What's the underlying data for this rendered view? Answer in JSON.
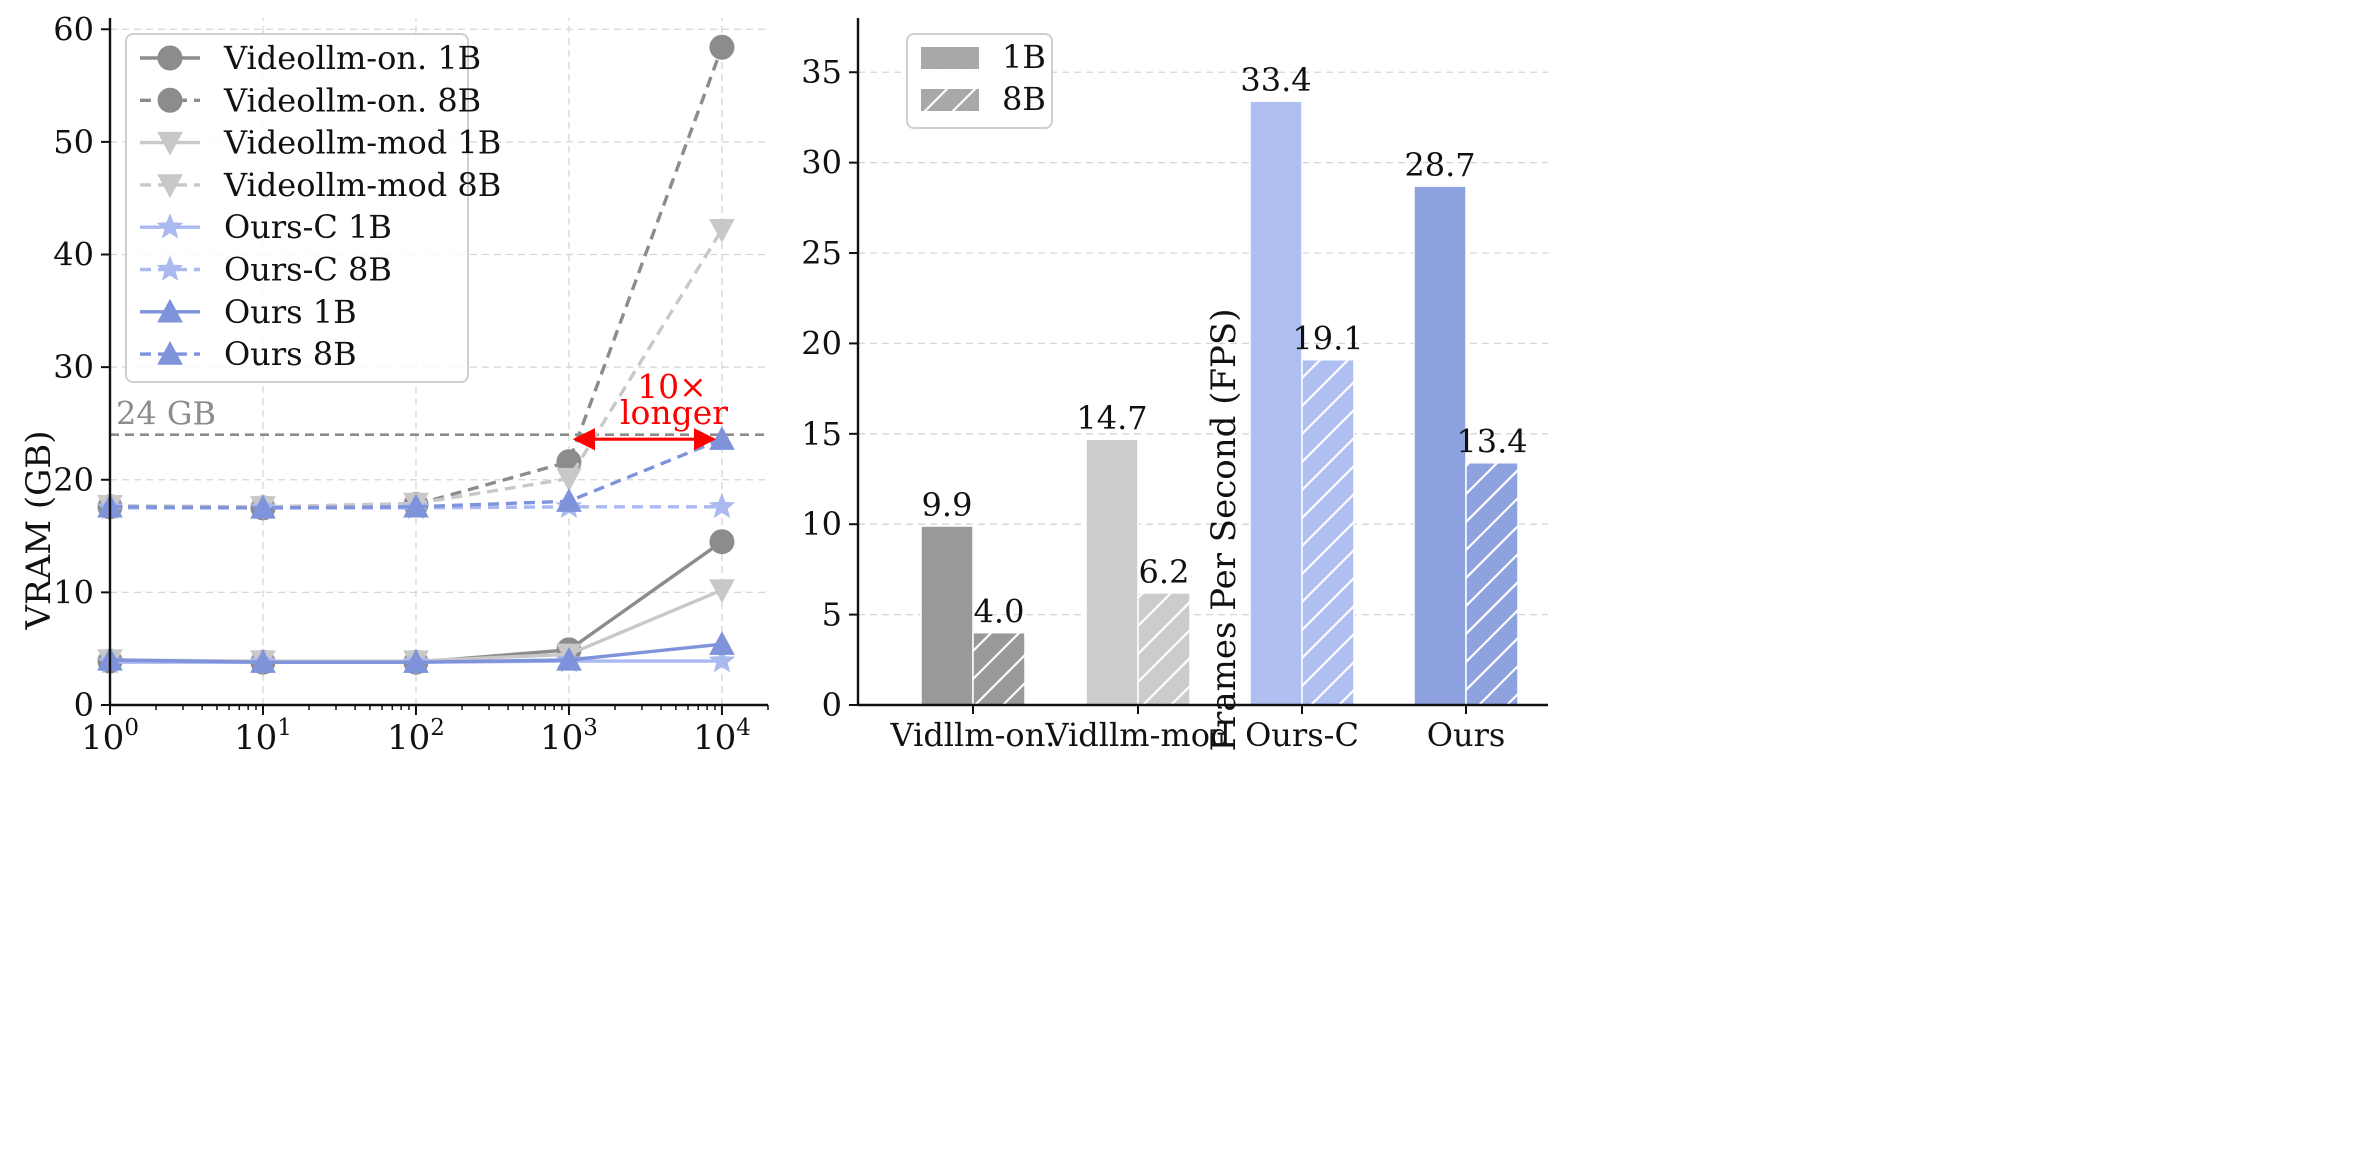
{
  "chart_data": [
    {
      "type": "line",
      "xscale": "log",
      "x": [
        1,
        10,
        100,
        1000,
        10000
      ],
      "xlim": [
        1,
        20000
      ],
      "xticks": [
        {
          "value": 1,
          "base": "10",
          "exp": "0"
        },
        {
          "value": 10,
          "base": "10",
          "exp": "1"
        },
        {
          "value": 100,
          "base": "10",
          "exp": "2"
        },
        {
          "value": 1000,
          "base": "10",
          "exp": "3"
        },
        {
          "value": 10000,
          "base": "10",
          "exp": "4"
        }
      ],
      "ylim": [
        0,
        61
      ],
      "yticks": [
        0,
        10,
        20,
        30,
        40,
        50,
        60
      ],
      "ylabel": "VRAM (GB)",
      "grid": true,
      "legend_position": "top-left",
      "series": [
        {
          "name": "Videollm-on. 1B",
          "values": [
            3.9,
            3.8,
            3.8,
            4.9,
            14.5
          ],
          "color": "#8c8c8c",
          "dash": "solid",
          "marker": "circle"
        },
        {
          "name": "Videollm-on. 8B",
          "values": [
            17.6,
            17.5,
            17.8,
            21.6,
            58.4
          ],
          "color": "#8c8c8c",
          "dash": "dashed",
          "marker": "circle"
        },
        {
          "name": "Videollm-mod 1B",
          "values": [
            4.0,
            3.9,
            3.9,
            4.5,
            10.2
          ],
          "color": "#c8c8c8",
          "dash": "solid",
          "marker": "triangle-down"
        },
        {
          "name": "Videollm-mod 8B",
          "values": [
            17.7,
            17.6,
            17.9,
            20.1,
            42.2
          ],
          "color": "#c8c8c8",
          "dash": "dashed",
          "marker": "triangle-down"
        },
        {
          "name": "Ours-C 1B",
          "values": [
            3.8,
            3.8,
            3.8,
            3.9,
            3.9
          ],
          "color": "#aab9f0",
          "dash": "solid",
          "marker": "star"
        },
        {
          "name": "Ours-C 8B",
          "values": [
            17.5,
            17.5,
            17.5,
            17.6,
            17.6
          ],
          "color": "#aab9f0",
          "dash": "dashed",
          "marker": "star"
        },
        {
          "name": "Ours 1B",
          "values": [
            4.0,
            3.8,
            3.8,
            4.0,
            5.4
          ],
          "color": "#7f93db",
          "dash": "solid",
          "marker": "triangle-up"
        },
        {
          "name": "Ours 8B",
          "values": [
            17.6,
            17.5,
            17.6,
            18.1,
            23.6
          ],
          "color": "#7f93db",
          "dash": "dashed",
          "marker": "triangle-up"
        }
      ],
      "reference_line": {
        "y": 24,
        "label": "24 GB",
        "color": "#8c8c8c"
      },
      "annotation": {
        "line1": "10×",
        "line2": "longer",
        "color": "#ff0000",
        "arrow_from_x": 1000,
        "arrow_to_x": 10000,
        "arrow_y": 23.6
      }
    },
    {
      "type": "bar",
      "categories": [
        "Vidllm-on.",
        "Vidllm-mod",
        "Ours-C",
        "Ours"
      ],
      "ylabel": "Frames Per Second (FPS)",
      "ylim": [
        0,
        38
      ],
      "yticks": [
        0,
        5,
        10,
        15,
        20,
        25,
        30,
        35
      ],
      "grid": true,
      "legend_position": "top-left",
      "series": [
        {
          "name": "1B",
          "values": [
            9.9,
            14.7,
            33.4,
            28.7
          ],
          "labels": [
            "9.9",
            "14.7",
            "33.4",
            "28.7"
          ],
          "hatch": false
        },
        {
          "name": "8B",
          "values": [
            4.0,
            6.2,
            19.1,
            13.4
          ],
          "labels": [
            "4.0",
            "6.2",
            "19.1",
            "13.4"
          ],
          "hatch": true
        }
      ],
      "colors": [
        "#999999",
        "#cccccc",
        "#b0bff2",
        "#8fa2e0"
      ],
      "legend_color": "#a8a8a8"
    }
  ]
}
